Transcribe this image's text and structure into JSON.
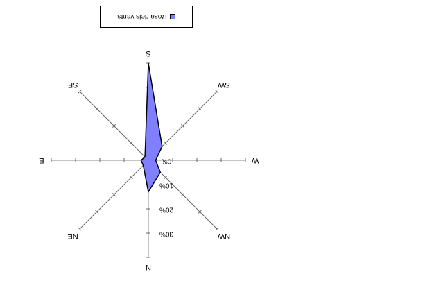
{
  "chart_data": {
    "type": "radar",
    "orientation": "rotated-180",
    "directions": [
      "N",
      "NE",
      "E",
      "SE",
      "S",
      "SW",
      "W",
      "NW"
    ],
    "radial_ticks": [
      "0%",
      "10%",
      "20%",
      "30%"
    ],
    "radial_range": [
      0,
      0.4
    ],
    "series": [
      {
        "name": "Rosa dels vents",
        "values": [
          0.13,
          0.03,
          0.03,
          0.02,
          0.4,
          0.08,
          0.03,
          0.07
        ],
        "color": "#8080ff",
        "stroke": "#000000"
      }
    ],
    "legend_position": "top"
  }
}
